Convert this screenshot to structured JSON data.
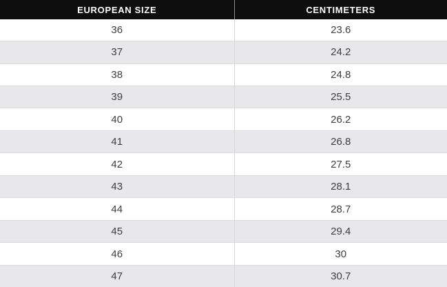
{
  "table": {
    "header": [
      "EUROPEAN SIZE",
      "CENTIMETERS"
    ],
    "rows": [
      [
        "36",
        "23.6"
      ],
      [
        "37",
        "24.2"
      ],
      [
        "38",
        "24.8"
      ],
      [
        "39",
        "25.5"
      ],
      [
        "40",
        "26.2"
      ],
      [
        "41",
        "26.8"
      ],
      [
        "42",
        "27.5"
      ],
      [
        "43",
        "28.1"
      ],
      [
        "44",
        "28.7"
      ],
      [
        "45",
        "29.4"
      ],
      [
        "46",
        "30"
      ],
      [
        "47",
        "30.7"
      ]
    ]
  },
  "chart_data": {
    "type": "table",
    "title": "",
    "columns": [
      "EUROPEAN SIZE",
      "CENTIMETERS"
    ],
    "rows": [
      [
        36,
        23.6
      ],
      [
        37,
        24.2
      ],
      [
        38,
        24.8
      ],
      [
        39,
        25.5
      ],
      [
        40,
        26.2
      ],
      [
        41,
        26.8
      ],
      [
        42,
        27.5
      ],
      [
        43,
        28.1
      ],
      [
        44,
        28.7
      ],
      [
        45,
        29.4
      ],
      [
        46,
        30
      ],
      [
        47,
        30.7
      ]
    ]
  },
  "colors": {
    "header_bg": "#0e0e0e",
    "header_text": "#ffffff",
    "row_bg": "#ffffff",
    "row_alt_bg": "#e8e7e9",
    "body_text": "#3e3d40",
    "column_divider": "#d6d5d9",
    "header_divider": "#909093",
    "row_border": "#dcdbdf"
  }
}
